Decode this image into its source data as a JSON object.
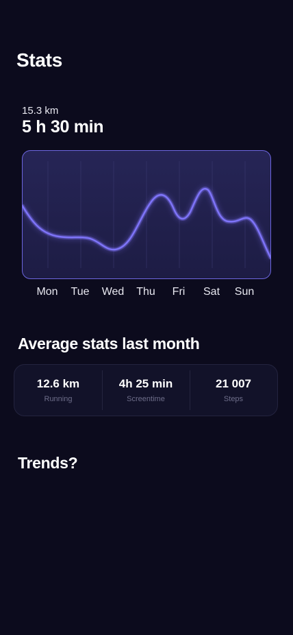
{
  "header": {
    "title": "Stats"
  },
  "summary": {
    "distance": "15.3 km",
    "duration": "5 h 30 min"
  },
  "chart_data": {
    "type": "line",
    "categories": [
      "Mon",
      "Tue",
      "Wed",
      "Thu",
      "Fri",
      "Sat",
      "Sun"
    ],
    "grid": true,
    "line_color": "#7b70f5"
  },
  "average": {
    "title": "Average stats last month",
    "stats": [
      {
        "value": "12.6 km",
        "label": "Running"
      },
      {
        "value": "4h 25 min",
        "label": "Screentime"
      },
      {
        "value": "21 007",
        "label": "Steps"
      }
    ]
  },
  "trends": {
    "title": "Trends?"
  },
  "colors": {
    "background": "#0c0b1d",
    "chart_fill": "#23224f",
    "chart_border": "#6d66e0",
    "card": "#121229"
  }
}
